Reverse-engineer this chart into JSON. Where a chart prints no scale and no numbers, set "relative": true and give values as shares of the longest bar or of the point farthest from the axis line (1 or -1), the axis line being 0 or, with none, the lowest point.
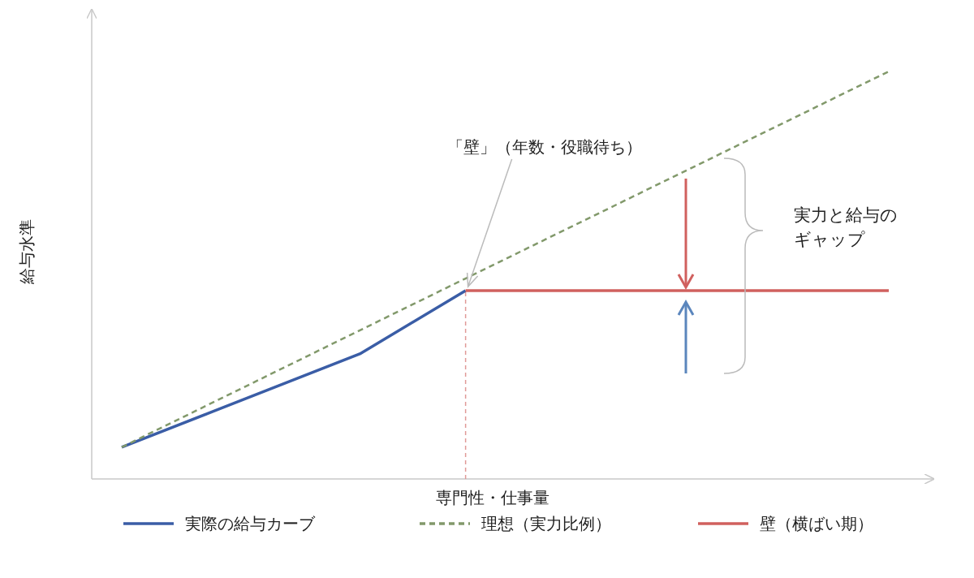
{
  "chart_data": {
    "type": "line",
    "relative": true,
    "xlabel": "専門性・仕事量",
    "ylabel": "給与水準",
    "categories": [
      null,
      null,
      null,
      null,
      null,
      null,
      null,
      null,
      null,
      null,
      null,
      null,
      null,
      null,
      null,
      null,
      null,
      null,
      null,
      null,
      null,
      null,
      null,
      null,
      null,
      null,
      null,
      null,
      null,
      null
    ],
    "series": [
      {
        "name": "実際の給与カーブ",
        "color": "#3a5da6",
        "line_style": "solid",
        "values": [
          0.078,
          null,
          null,
          null,
          null,
          null,
          null,
          null,
          null,
          0.307,
          null,
          null,
          null,
          0.462,
          null,
          null,
          null,
          null,
          null,
          null,
          null,
          null,
          null,
          null,
          null,
          null,
          null,
          null,
          null,
          null
        ]
      },
      {
        "name": "理想（実力比例）",
        "color": "#82996b",
        "line_style": "dashed",
        "values": [
          0.078,
          null,
          null,
          null,
          null,
          null,
          null,
          null,
          null,
          null,
          null,
          null,
          null,
          0.492,
          null,
          null,
          null,
          null,
          null,
          null,
          null,
          null,
          null,
          null,
          null,
          null,
          null,
          null,
          null,
          1
        ]
      },
      {
        "name": "壁（横ばい期）",
        "color": "#d0605e",
        "line_style": "solid",
        "values": [
          null,
          null,
          null,
          null,
          null,
          null,
          null,
          null,
          null,
          null,
          null,
          null,
          null,
          0.462,
          null,
          null,
          null,
          null,
          null,
          null,
          null,
          null,
          null,
          null,
          null,
          null,
          null,
          null,
          null,
          0.462
        ]
      }
    ],
    "annotations": [
      "「壁」（年数・役職待ち）",
      "実力と給与のギャップ"
    ],
    "legend": "bottom"
  }
}
